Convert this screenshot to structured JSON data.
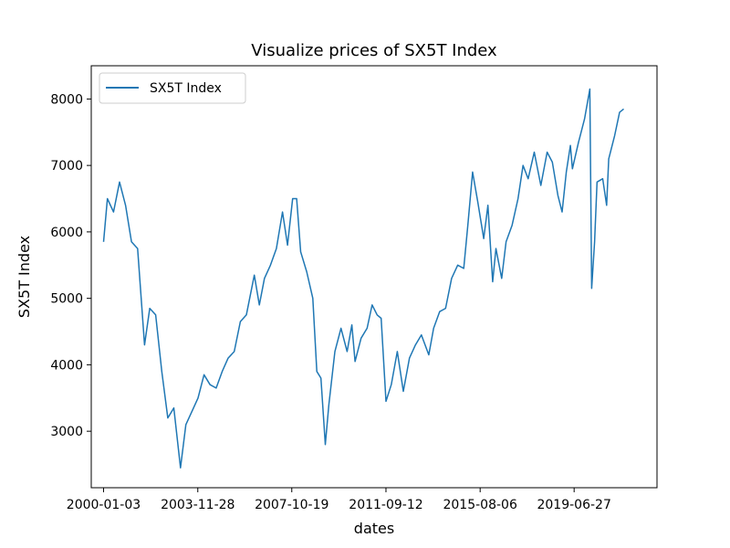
{
  "chart_data": {
    "type": "line",
    "title": "Visualize prices of SX5T Index",
    "xlabel": "dates",
    "ylabel": "SX5T Index",
    "x_tick_labels": [
      "2000-01-03",
      "2003-11-28",
      "2007-10-19",
      "2011-09-12",
      "2015-08-06",
      "2019-06-27"
    ],
    "x_range": [
      "1999-07-01",
      "2022-12-01"
    ],
    "y_ticks": [
      3000,
      4000,
      5000,
      6000,
      7000,
      8000
    ],
    "ylim": [
      2150,
      8500
    ],
    "legend_position": "upper-left",
    "grid": false,
    "series": [
      {
        "name": "SX5T Index",
        "color": "#1f77b4",
        "points": [
          [
            "2000-01-03",
            5850
          ],
          [
            "2000-03-01",
            6500
          ],
          [
            "2000-06-01",
            6300
          ],
          [
            "2000-09-01",
            6750
          ],
          [
            "2000-12-01",
            6400
          ],
          [
            "2001-03-01",
            5850
          ],
          [
            "2001-06-01",
            5750
          ],
          [
            "2001-09-14",
            4300
          ],
          [
            "2001-12-01",
            4850
          ],
          [
            "2002-03-01",
            4750
          ],
          [
            "2002-06-01",
            3900
          ],
          [
            "2002-09-01",
            3200
          ],
          [
            "2002-12-01",
            3350
          ],
          [
            "2003-03-12",
            2450
          ],
          [
            "2003-06-01",
            3100
          ],
          [
            "2003-09-01",
            3300
          ],
          [
            "2003-12-01",
            3500
          ],
          [
            "2004-03-01",
            3850
          ],
          [
            "2004-06-01",
            3700
          ],
          [
            "2004-09-01",
            3650
          ],
          [
            "2004-12-01",
            3900
          ],
          [
            "2005-03-01",
            4100
          ],
          [
            "2005-06-01",
            4200
          ],
          [
            "2005-09-01",
            4650
          ],
          [
            "2005-12-01",
            4750
          ],
          [
            "2006-04-01",
            5350
          ],
          [
            "2006-06-15",
            4900
          ],
          [
            "2006-09-01",
            5300
          ],
          [
            "2006-12-01",
            5500
          ],
          [
            "2007-03-01",
            5750
          ],
          [
            "2007-06-01",
            6300
          ],
          [
            "2007-08-15",
            5800
          ],
          [
            "2007-11-01",
            6500
          ],
          [
            "2008-01-01",
            6500
          ],
          [
            "2008-03-01",
            5700
          ],
          [
            "2008-06-01",
            5400
          ],
          [
            "2008-09-01",
            5000
          ],
          [
            "2008-11-01",
            3900
          ],
          [
            "2009-01-01",
            3800
          ],
          [
            "2009-03-09",
            2800
          ],
          [
            "2009-05-01",
            3400
          ],
          [
            "2009-08-01",
            4200
          ],
          [
            "2009-11-01",
            4550
          ],
          [
            "2010-02-01",
            4200
          ],
          [
            "2010-04-15",
            4600
          ],
          [
            "2010-06-01",
            4050
          ],
          [
            "2010-09-01",
            4400
          ],
          [
            "2010-12-01",
            4550
          ],
          [
            "2011-02-15",
            4900
          ],
          [
            "2011-05-01",
            4750
          ],
          [
            "2011-07-01",
            4700
          ],
          [
            "2011-09-12",
            3450
          ],
          [
            "2011-12-01",
            3700
          ],
          [
            "2012-03-01",
            4200
          ],
          [
            "2012-06-01",
            3600
          ],
          [
            "2012-09-01",
            4100
          ],
          [
            "2012-12-01",
            4300
          ],
          [
            "2013-03-01",
            4450
          ],
          [
            "2013-06-20",
            4150
          ],
          [
            "2013-09-01",
            4550
          ],
          [
            "2013-12-01",
            4800
          ],
          [
            "2014-03-01",
            4850
          ],
          [
            "2014-06-01",
            5300
          ],
          [
            "2014-09-01",
            5500
          ],
          [
            "2014-12-01",
            5450
          ],
          [
            "2015-02-01",
            6100
          ],
          [
            "2015-04-13",
            6900
          ],
          [
            "2015-07-01",
            6450
          ],
          [
            "2015-09-29",
            5900
          ],
          [
            "2015-12-01",
            6400
          ],
          [
            "2016-02-11",
            5250
          ],
          [
            "2016-04-01",
            5750
          ],
          [
            "2016-06-27",
            5300
          ],
          [
            "2016-09-01",
            5850
          ],
          [
            "2016-12-01",
            6100
          ],
          [
            "2017-03-01",
            6500
          ],
          [
            "2017-05-15",
            7000
          ],
          [
            "2017-08-01",
            6800
          ],
          [
            "2017-11-01",
            7200
          ],
          [
            "2018-02-09",
            6700
          ],
          [
            "2018-05-15",
            7200
          ],
          [
            "2018-08-01",
            7050
          ],
          [
            "2018-10-25",
            6550
          ],
          [
            "2018-12-27",
            6300
          ],
          [
            "2019-03-01",
            6900
          ],
          [
            "2019-05-01",
            7300
          ],
          [
            "2019-06-01",
            6950
          ],
          [
            "2019-09-01",
            7350
          ],
          [
            "2019-12-01",
            7700
          ],
          [
            "2020-02-19",
            8150
          ],
          [
            "2020-03-18",
            5150
          ],
          [
            "2020-05-01",
            5850
          ],
          [
            "2020-06-08",
            6750
          ],
          [
            "2020-09-01",
            6800
          ],
          [
            "2020-10-30",
            6400
          ],
          [
            "2020-12-01",
            7100
          ],
          [
            "2021-03-01",
            7450
          ],
          [
            "2021-05-15",
            7800
          ],
          [
            "2021-07-15",
            7850
          ]
        ]
      }
    ]
  }
}
